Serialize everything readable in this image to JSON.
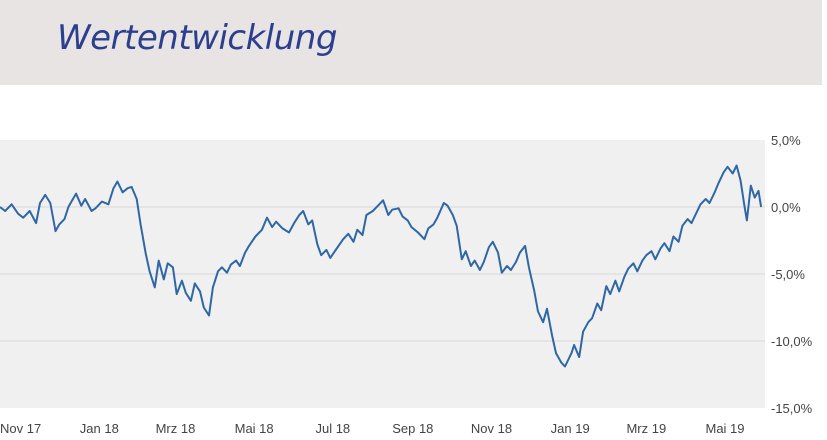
{
  "header": {
    "title": "Wertentwicklung",
    "background": "#e8e4e4",
    "title_color": "#2b3f8e"
  },
  "chart_data": {
    "type": "line",
    "title": "Wertentwicklung",
    "xlabel": "",
    "ylabel": "",
    "y_unit": "%",
    "ylim": [
      -15,
      5
    ],
    "yticks": [
      5,
      0,
      -5,
      -10,
      -15
    ],
    "ytick_labels": [
      "5,0%",
      "0,0%",
      "-5,0%",
      "-10,0%",
      "-15,0%"
    ],
    "y_axis_position": "right",
    "grid": "horizontal",
    "legend": "none",
    "plot_background": "#f0f0f0",
    "line_color": "#2f67a6",
    "x_range": [
      "2017-10-16",
      "2019-06-01"
    ],
    "x_ticks": [
      {
        "date": "2017-11-01",
        "label": "Nov 17"
      },
      {
        "date": "2018-01-01",
        "label": "Jan 18"
      },
      {
        "date": "2018-03-01",
        "label": "Mrz 18"
      },
      {
        "date": "2018-05-01",
        "label": "Mai 18"
      },
      {
        "date": "2018-07-01",
        "label": "Jul 18"
      },
      {
        "date": "2018-09-01",
        "label": "Sep 18"
      },
      {
        "date": "2018-11-01",
        "label": "Nov 18"
      },
      {
        "date": "2019-01-01",
        "label": "Jan 19"
      },
      {
        "date": "2019-03-01",
        "label": "Mrz 19"
      },
      {
        "date": "2019-05-01",
        "label": "Mai 19"
      }
    ],
    "series": [
      {
        "values": [
          [
            "2017-10-16",
            0.0
          ],
          [
            "2017-10-20",
            -0.3
          ],
          [
            "2017-10-25",
            0.2
          ],
          [
            "2017-10-30",
            -0.5
          ],
          [
            "2017-11-03",
            -0.8
          ],
          [
            "2017-11-08",
            -0.3
          ],
          [
            "2017-11-13",
            -1.2
          ],
          [
            "2017-11-16",
            0.3
          ],
          [
            "2017-11-20",
            0.9
          ],
          [
            "2017-11-24",
            0.3
          ],
          [
            "2017-11-28",
            -1.8
          ],
          [
            "2017-12-01",
            -1.3
          ],
          [
            "2017-12-05",
            -0.9
          ],
          [
            "2017-12-08",
            0.0
          ],
          [
            "2017-12-11",
            0.5
          ],
          [
            "2017-12-14",
            1.0
          ],
          [
            "2017-12-18",
            0.1
          ],
          [
            "2017-12-21",
            0.6
          ],
          [
            "2017-12-26",
            -0.3
          ],
          [
            "2017-12-29",
            -0.1
          ],
          [
            "2018-01-03",
            0.4
          ],
          [
            "2018-01-08",
            0.2
          ],
          [
            "2018-01-12",
            1.4
          ],
          [
            "2018-01-15",
            1.9
          ],
          [
            "2018-01-19",
            1.1
          ],
          [
            "2018-01-23",
            1.4
          ],
          [
            "2018-01-26",
            1.5
          ],
          [
            "2018-01-30",
            0.6
          ],
          [
            "2018-02-02",
            -1.3
          ],
          [
            "2018-02-06",
            -3.5
          ],
          [
            "2018-02-09",
            -4.8
          ],
          [
            "2018-02-13",
            -6.0
          ],
          [
            "2018-02-16",
            -4.0
          ],
          [
            "2018-02-20",
            -5.4
          ],
          [
            "2018-02-23",
            -4.2
          ],
          [
            "2018-02-27",
            -4.5
          ],
          [
            "2018-03-02",
            -6.5
          ],
          [
            "2018-03-06",
            -5.5
          ],
          [
            "2018-03-09",
            -6.4
          ],
          [
            "2018-03-13",
            -7.0
          ],
          [
            "2018-03-16",
            -5.7
          ],
          [
            "2018-03-20",
            -6.3
          ],
          [
            "2018-03-23",
            -7.5
          ],
          [
            "2018-03-27",
            -8.1
          ],
          [
            "2018-03-30",
            -6.0
          ],
          [
            "2018-04-03",
            -4.8
          ],
          [
            "2018-04-06",
            -4.5
          ],
          [
            "2018-04-10",
            -4.9
          ],
          [
            "2018-04-13",
            -4.3
          ],
          [
            "2018-04-17",
            -4.0
          ],
          [
            "2018-04-20",
            -4.4
          ],
          [
            "2018-04-24",
            -3.4
          ],
          [
            "2018-04-27",
            -2.9
          ],
          [
            "2018-05-02",
            -2.2
          ],
          [
            "2018-05-07",
            -1.7
          ],
          [
            "2018-05-11",
            -0.8
          ],
          [
            "2018-05-15",
            -1.5
          ],
          [
            "2018-05-18",
            -1.1
          ],
          [
            "2018-05-23",
            -1.6
          ],
          [
            "2018-05-28",
            -1.9
          ],
          [
            "2018-06-01",
            -1.2
          ],
          [
            "2018-06-05",
            -0.6
          ],
          [
            "2018-06-08",
            -0.3
          ],
          [
            "2018-06-12",
            -1.3
          ],
          [
            "2018-06-15",
            -1.0
          ],
          [
            "2018-06-19",
            -2.8
          ],
          [
            "2018-06-22",
            -3.6
          ],
          [
            "2018-06-26",
            -3.2
          ],
          [
            "2018-06-29",
            -3.8
          ],
          [
            "2018-07-04",
            -3.1
          ],
          [
            "2018-07-09",
            -2.4
          ],
          [
            "2018-07-13",
            -2.0
          ],
          [
            "2018-07-17",
            -2.6
          ],
          [
            "2018-07-20",
            -1.7
          ],
          [
            "2018-07-24",
            -2.1
          ],
          [
            "2018-07-27",
            -0.6
          ],
          [
            "2018-08-01",
            -0.3
          ],
          [
            "2018-08-06",
            0.2
          ],
          [
            "2018-08-09",
            0.5
          ],
          [
            "2018-08-13",
            -0.6
          ],
          [
            "2018-08-16",
            -0.2
          ],
          [
            "2018-08-21",
            -0.1
          ],
          [
            "2018-08-24",
            -0.7
          ],
          [
            "2018-08-28",
            -1.0
          ],
          [
            "2018-08-31",
            -1.5
          ],
          [
            "2018-09-05",
            -1.9
          ],
          [
            "2018-09-10",
            -2.4
          ],
          [
            "2018-09-13",
            -1.6
          ],
          [
            "2018-09-17",
            -1.3
          ],
          [
            "2018-09-20",
            -0.8
          ],
          [
            "2018-09-25",
            0.3
          ],
          [
            "2018-09-28",
            0.1
          ],
          [
            "2018-10-02",
            -0.6
          ],
          [
            "2018-10-05",
            -1.4
          ],
          [
            "2018-10-09",
            -3.9
          ],
          [
            "2018-10-12",
            -3.3
          ],
          [
            "2018-10-16",
            -4.4
          ],
          [
            "2018-10-19",
            -4.0
          ],
          [
            "2018-10-23",
            -4.7
          ],
          [
            "2018-10-26",
            -4.1
          ],
          [
            "2018-10-30",
            -3.0
          ],
          [
            "2018-11-02",
            -2.6
          ],
          [
            "2018-11-06",
            -3.4
          ],
          [
            "2018-11-09",
            -4.9
          ],
          [
            "2018-11-13",
            -4.4
          ],
          [
            "2018-11-16",
            -4.7
          ],
          [
            "2018-11-20",
            -4.1
          ],
          [
            "2018-11-23",
            -3.4
          ],
          [
            "2018-11-27",
            -2.9
          ],
          [
            "2018-11-30",
            -4.5
          ],
          [
            "2018-12-04",
            -6.2
          ],
          [
            "2018-12-07",
            -7.8
          ],
          [
            "2018-12-11",
            -8.6
          ],
          [
            "2018-12-14",
            -7.6
          ],
          [
            "2018-12-18",
            -9.6
          ],
          [
            "2018-12-21",
            -10.9
          ],
          [
            "2018-12-25",
            -11.6
          ],
          [
            "2018-12-28",
            -11.9
          ],
          [
            "2019-01-02",
            -10.9
          ],
          [
            "2019-01-04",
            -10.3
          ],
          [
            "2019-01-08",
            -11.2
          ],
          [
            "2019-01-11",
            -9.3
          ],
          [
            "2019-01-15",
            -8.6
          ],
          [
            "2019-01-18",
            -8.3
          ],
          [
            "2019-01-22",
            -7.2
          ],
          [
            "2019-01-25",
            -7.7
          ],
          [
            "2019-01-29",
            -5.9
          ],
          [
            "2019-02-01",
            -6.5
          ],
          [
            "2019-02-05",
            -5.5
          ],
          [
            "2019-02-08",
            -6.3
          ],
          [
            "2019-02-12",
            -5.2
          ],
          [
            "2019-02-15",
            -4.6
          ],
          [
            "2019-02-19",
            -4.2
          ],
          [
            "2019-02-22",
            -4.8
          ],
          [
            "2019-02-26",
            -4.0
          ],
          [
            "2019-03-01",
            -3.6
          ],
          [
            "2019-03-05",
            -3.3
          ],
          [
            "2019-03-08",
            -3.9
          ],
          [
            "2019-03-12",
            -3.1
          ],
          [
            "2019-03-15",
            -2.7
          ],
          [
            "2019-03-19",
            -3.3
          ],
          [
            "2019-03-22",
            -2.2
          ],
          [
            "2019-03-26",
            -2.6
          ],
          [
            "2019-03-29",
            -1.4
          ],
          [
            "2019-04-02",
            -0.9
          ],
          [
            "2019-04-05",
            -1.2
          ],
          [
            "2019-04-09",
            -0.4
          ],
          [
            "2019-04-12",
            0.2
          ],
          [
            "2019-04-16",
            0.6
          ],
          [
            "2019-04-19",
            0.3
          ],
          [
            "2019-04-23",
            1.1
          ],
          [
            "2019-04-26",
            1.8
          ],
          [
            "2019-04-30",
            2.6
          ],
          [
            "2019-05-03",
            3.0
          ],
          [
            "2019-05-07",
            2.5
          ],
          [
            "2019-05-10",
            3.1
          ],
          [
            "2019-05-13",
            2.0
          ],
          [
            "2019-05-16",
            0.1
          ],
          [
            "2019-05-18",
            -1.0
          ],
          [
            "2019-05-21",
            1.6
          ],
          [
            "2019-05-24",
            0.7
          ],
          [
            "2019-05-27",
            1.2
          ],
          [
            "2019-05-29",
            0.0
          ]
        ]
      }
    ]
  }
}
